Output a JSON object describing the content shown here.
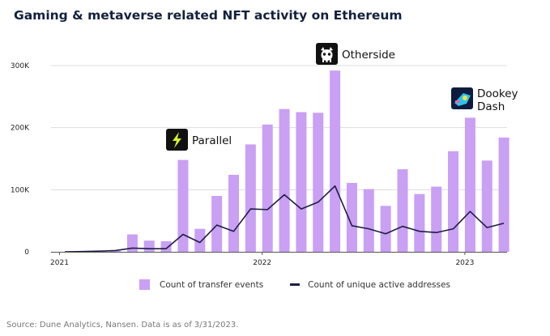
{
  "title": "Gaming & metaverse related NFT activity on Ethereum",
  "source": "Source: Dune Analytics, Nansen. Data is as of 3/31/2023.",
  "legend": {
    "bars": "Count of transfer events",
    "line": "Count of unique active addresses"
  },
  "colors": {
    "bar": "#c9a0f3",
    "line": "#1f1d45",
    "grid": "#dddddd",
    "parallel_icon_bg": "#111111",
    "parallel_icon_fg": "#d6f52a",
    "otherside_icon_bg": "#111111",
    "dookey_icon_bg": "#0d1b3e",
    "dookey_icon_fg": "#29c4e8"
  },
  "chart_data": {
    "type": "bar",
    "title": "Gaming & metaverse related NFT activity on Ethereum",
    "x": [
      "2021-01",
      "2021-02",
      "2021-03",
      "2021-04",
      "2021-05",
      "2021-06",
      "2021-07",
      "2021-08",
      "2021-09",
      "2021-10",
      "2021-11",
      "2021-12",
      "2022-01",
      "2022-02",
      "2022-03",
      "2022-04",
      "2022-05",
      "2022-06",
      "2022-07",
      "2022-08",
      "2022-09",
      "2022-10",
      "2022-11",
      "2022-12",
      "2023-01",
      "2023-02",
      "2023-03"
    ],
    "x_tick_labels": [
      "2021",
      "2022",
      "2023"
    ],
    "y_ticks": [
      0,
      100000,
      200000,
      300000
    ],
    "y_tick_labels": [
      "0",
      "100K",
      "200K",
      "300K"
    ],
    "ylim": [
      0,
      300000
    ],
    "grid": true,
    "legend_position": "bottom",
    "series": [
      {
        "name": "Count of transfer events",
        "type": "bar",
        "values": [
          0,
          500,
          1000,
          1500,
          28000,
          18000,
          17000,
          148000,
          37000,
          90000,
          124000,
          173000,
          205000,
          230000,
          225000,
          224000,
          292000,
          111000,
          101000,
          74000,
          133000,
          93000,
          105000,
          162000,
          216000,
          147000,
          184000
        ]
      },
      {
        "name": "Count of unique active addresses",
        "type": "line",
        "values": [
          0,
          500,
          1000,
          2000,
          6000,
          5000,
          5000,
          28000,
          15000,
          43000,
          33000,
          69000,
          68000,
          92000,
          69000,
          80000,
          106000,
          42000,
          37000,
          29000,
          41000,
          33000,
          31000,
          37000,
          65000,
          39000,
          46000
        ]
      }
    ],
    "annotations": [
      {
        "label": "Parallel",
        "month": "2021-08",
        "icon": "parallel-logo-icon"
      },
      {
        "label": "Otherside",
        "month": "2022-05",
        "icon": "otherside-logo-icon"
      },
      {
        "label": "Dookey Dash",
        "lines": [
          "Dookey",
          "Dash"
        ],
        "month": "2023-01",
        "icon": "dookey-dash-logo-icon"
      }
    ]
  }
}
